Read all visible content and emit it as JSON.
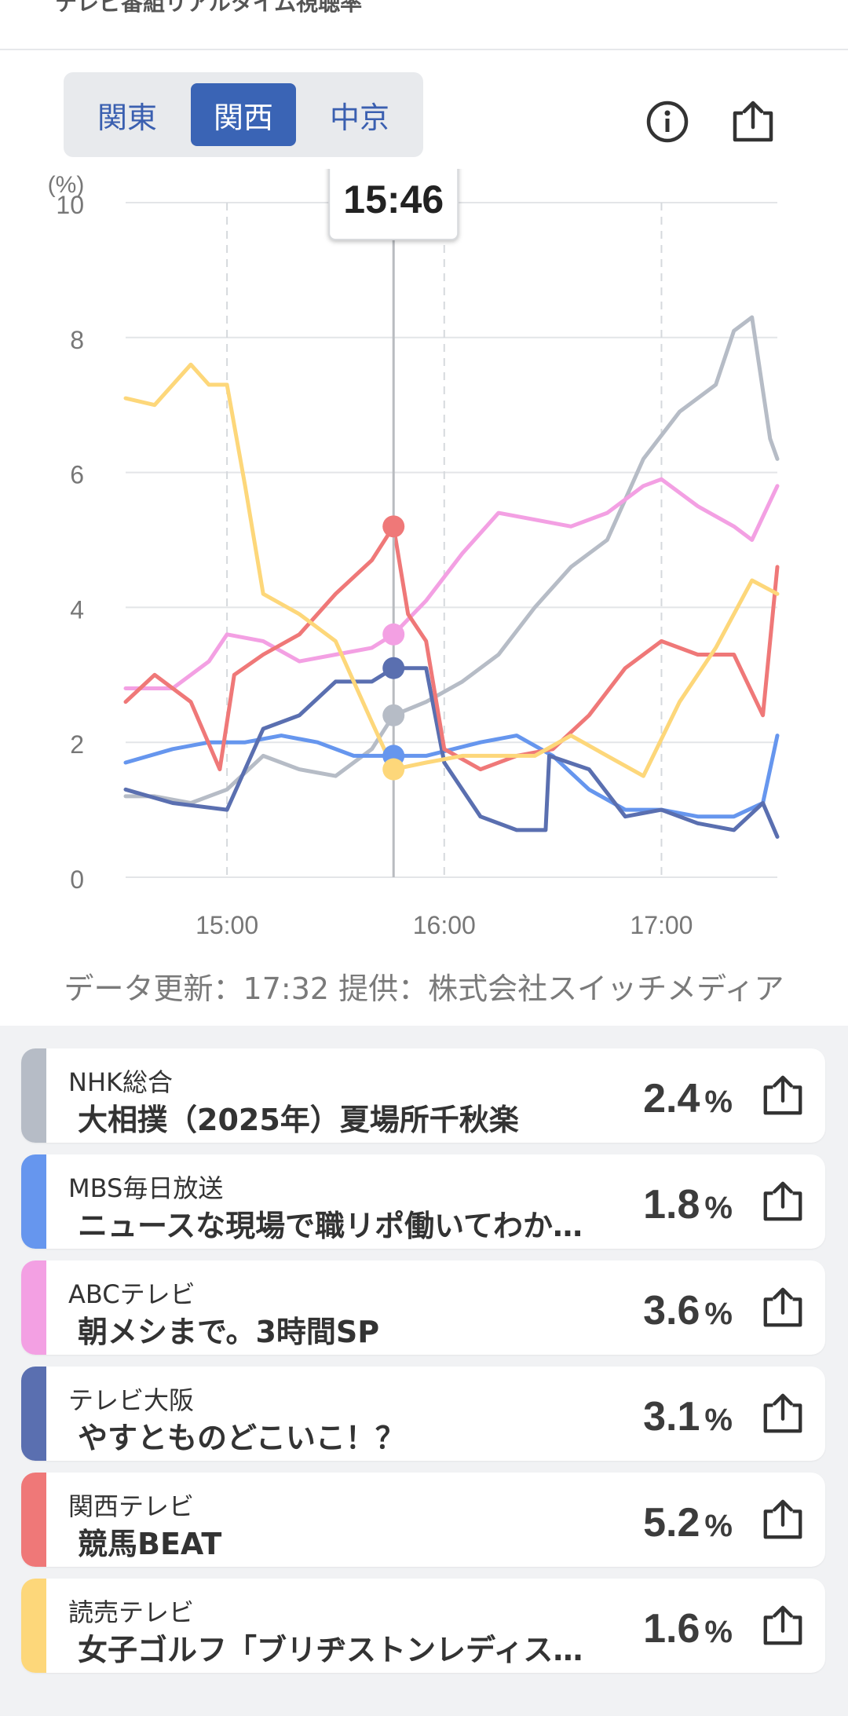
{
  "app_title": "テレビ番組リアルタイム視聴率",
  "regions": {
    "options": [
      "関東",
      "関西",
      "中京"
    ],
    "selected": "関西"
  },
  "icons": {
    "info": "info-icon",
    "share": "share-icon"
  },
  "update_text": "データ更新：17:32  提供：株式会社スイッチメディア",
  "cursor_time": "15:46",
  "channels": [
    {
      "channel": "NHK総合",
      "program": "大相撲（2025年）夏場所千秋楽",
      "rate": "2.4",
      "unit": "%",
      "color": "#b6bcc6"
    },
    {
      "channel": "MBS毎日放送",
      "program": "ニュースな現場で職リポ働いてわか…",
      "rate": "1.8",
      "unit": "%",
      "color": "#6696ee"
    },
    {
      "channel": "ABCテレビ",
      "program": "朝メシまで。3時間SP",
      "rate": "3.6",
      "unit": "%",
      "color": "#f3a0e3"
    },
    {
      "channel": "テレビ大阪",
      "program": "やすとものどこいこ！？",
      "rate": "3.1",
      "unit": "%",
      "color": "#5a6fb0"
    },
    {
      "channel": "関西テレビ",
      "program": "競馬BEAT",
      "rate": "5.2",
      "unit": "%",
      "color": "#ef7878"
    },
    {
      "channel": "読売テレビ",
      "program": "女子ゴルフ「ブリヂストンレディス…",
      "rate": "1.6",
      "unit": "%",
      "color": "#fdd77a"
    }
  ],
  "chart_data": {
    "type": "line",
    "ylabel": "(%)",
    "ylim": [
      0,
      10
    ],
    "yticks": [
      0,
      2,
      4,
      6,
      8,
      10
    ],
    "xlim": [
      "14:32",
      "17:32"
    ],
    "xticks": [
      "15:00",
      "16:00",
      "17:00"
    ],
    "grid": true,
    "cursor": "15:46",
    "series": [
      {
        "name": "NHK総合",
        "color": "#b6bcc6",
        "x": [
          "14:32",
          "14:40",
          "14:50",
          "15:00",
          "15:10",
          "15:20",
          "15:30",
          "15:40",
          "15:46",
          "15:55",
          "16:05",
          "16:15",
          "16:25",
          "16:35",
          "16:45",
          "16:55",
          "17:05",
          "17:15",
          "17:20",
          "17:25",
          "17:30",
          "17:32"
        ],
        "values": [
          1.2,
          1.2,
          1.1,
          1.3,
          1.8,
          1.6,
          1.5,
          1.9,
          2.4,
          2.6,
          2.9,
          3.3,
          4.0,
          4.6,
          5.0,
          6.2,
          6.9,
          7.3,
          8.1,
          8.3,
          6.5,
          6.2
        ]
      },
      {
        "name": "MBS毎日放送",
        "color": "#6696ee",
        "x": [
          "14:32",
          "14:45",
          "14:55",
          "15:05",
          "15:15",
          "15:25",
          "15:35",
          "15:46",
          "15:55",
          "16:10",
          "16:20",
          "16:30",
          "16:40",
          "16:50",
          "17:00",
          "17:10",
          "17:20",
          "17:28",
          "17:32"
        ],
        "values": [
          1.7,
          1.9,
          2.0,
          2.0,
          2.1,
          2.0,
          1.8,
          1.8,
          1.8,
          2.0,
          2.1,
          1.8,
          1.3,
          1.0,
          1.0,
          0.9,
          0.9,
          1.1,
          2.1
        ]
      },
      {
        "name": "ABCテレビ",
        "color": "#f3a0e3",
        "x": [
          "14:32",
          "14:45",
          "14:55",
          "15:00",
          "15:10",
          "15:20",
          "15:30",
          "15:40",
          "15:46",
          "15:55",
          "16:05",
          "16:15",
          "16:25",
          "16:35",
          "16:45",
          "16:55",
          "17:00",
          "17:10",
          "17:20",
          "17:25",
          "17:32"
        ],
        "values": [
          2.8,
          2.8,
          3.2,
          3.6,
          3.5,
          3.2,
          3.3,
          3.4,
          3.6,
          4.1,
          4.8,
          5.4,
          5.3,
          5.2,
          5.4,
          5.8,
          5.9,
          5.5,
          5.2,
          5.0,
          5.8
        ]
      },
      {
        "name": "テレビ大阪",
        "color": "#5a6fb0",
        "x": [
          "14:32",
          "14:45",
          "15:00",
          "15:10",
          "15:20",
          "15:30",
          "15:40",
          "15:46",
          "15:55",
          "16:00",
          "16:10",
          "16:20",
          "16:28",
          "16:29",
          "16:40",
          "16:50",
          "17:00",
          "17:10",
          "17:20",
          "17:28",
          "17:32"
        ],
        "values": [
          1.3,
          1.1,
          1.0,
          2.2,
          2.4,
          2.9,
          2.9,
          3.1,
          3.1,
          1.7,
          0.9,
          0.7,
          0.7,
          1.8,
          1.6,
          0.9,
          1.0,
          0.8,
          0.7,
          1.1,
          0.6
        ]
      },
      {
        "name": "関西テレビ",
        "color": "#ef7878",
        "x": [
          "14:32",
          "14:40",
          "14:50",
          "14:58",
          "15:02",
          "15:10",
          "15:20",
          "15:30",
          "15:40",
          "15:46",
          "15:50",
          "15:55",
          "16:00",
          "16:10",
          "16:20",
          "16:30",
          "16:40",
          "16:50",
          "17:00",
          "17:10",
          "17:20",
          "17:28",
          "17:32"
        ],
        "values": [
          2.6,
          3.0,
          2.6,
          1.6,
          3.0,
          3.3,
          3.6,
          4.2,
          4.7,
          5.2,
          3.9,
          3.5,
          1.9,
          1.6,
          1.8,
          1.9,
          2.4,
          3.1,
          3.5,
          3.3,
          3.3,
          2.4,
          4.6
        ]
      },
      {
        "name": "読売テレビ",
        "color": "#fdd77a",
        "x": [
          "14:32",
          "14:40",
          "14:50",
          "14:55",
          "15:00",
          "15:05",
          "15:10",
          "15:20",
          "15:30",
          "15:40",
          "15:46",
          "15:55",
          "16:05",
          "16:15",
          "16:25",
          "16:35",
          "16:45",
          "16:55",
          "17:05",
          "17:15",
          "17:25",
          "17:32"
        ],
        "values": [
          7.1,
          7.0,
          7.6,
          7.3,
          7.3,
          5.8,
          4.2,
          3.9,
          3.5,
          2.3,
          1.6,
          1.7,
          1.8,
          1.8,
          1.8,
          2.1,
          1.8,
          1.5,
          2.6,
          3.4,
          4.4,
          4.2
        ]
      }
    ]
  }
}
